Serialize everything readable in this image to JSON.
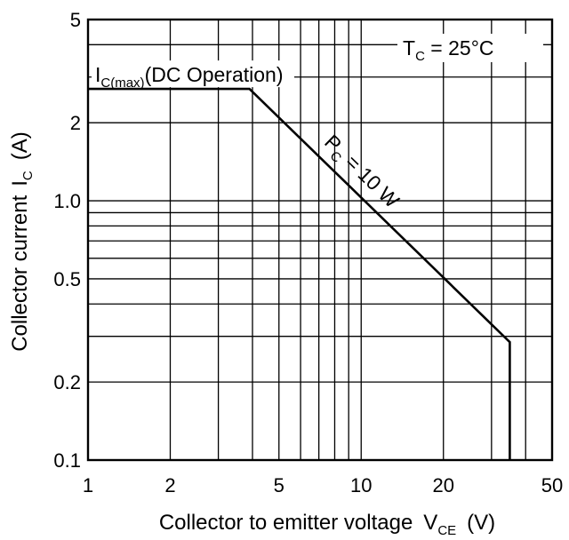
{
  "chart_data": {
    "type": "line",
    "title": "",
    "xlabel": "Collector to emitter voltage",
    "xlabel_symbol": "V",
    "xlabel_symbol_sub": "CE",
    "xlabel_unit": "(V)",
    "ylabel": "Collector current",
    "ylabel_symbol": "I",
    "ylabel_symbol_sub": "C",
    "ylabel_unit": "(A)",
    "xscale": "log",
    "yscale": "log",
    "xlim": [
      1,
      50
    ],
    "ylim": [
      0.1,
      5
    ],
    "xticks": [
      1,
      2,
      5,
      10,
      20,
      50
    ],
    "xtick_labels": [
      "1",
      "2",
      "5",
      "10",
      "20",
      "50"
    ],
    "yticks": [
      0.1,
      0.2,
      0.5,
      1.0,
      2,
      5
    ],
    "ytick_labels": [
      "0.1",
      "0.2",
      "0.5",
      "1.0",
      "2",
      "5"
    ],
    "grid": true,
    "series": [
      {
        "points": [
          {
            "x": 1,
            "y": 2.7
          },
          {
            "x": 3.9,
            "y": 2.7
          },
          {
            "x": 35,
            "y": 0.285
          },
          {
            "x": 35,
            "y": 0.1
          }
        ]
      }
    ],
    "annotations": {
      "icmax": {
        "main": "I",
        "sub": "C(max)",
        "rest": "(DC Operation)"
      },
      "tc": {
        "main": "T",
        "sub": "C",
        "rest": " = 25°C"
      },
      "pc": {
        "main": "P",
        "sub": "C",
        "rest": " = 10 W"
      }
    }
  }
}
